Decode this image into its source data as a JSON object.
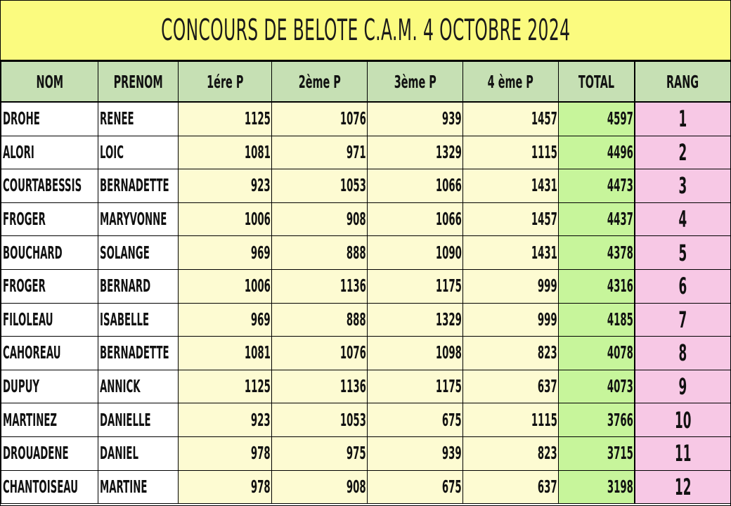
{
  "title": "CONCOURS DE BELOTE C.A.M. 4 OCTOBRE 2024",
  "headers": {
    "nom": "NOM",
    "prenom": "PRENOM",
    "p1": "1ére P",
    "p2": "2ème P",
    "p3": "3ème P",
    "p4": "4 ème P",
    "total": "TOTAL",
    "rang": "RANG"
  },
  "rows": [
    {
      "nom": "DROHE",
      "prenom": "RENEE",
      "p1": "1125",
      "p2": "1076",
      "p3": "939",
      "p4": "1457",
      "total": "4597",
      "rang": "1"
    },
    {
      "nom": "ALORI",
      "prenom": "LOIC",
      "p1": "1081",
      "p2": "971",
      "p3": "1329",
      "p4": "1115",
      "total": "4496",
      "rang": "2"
    },
    {
      "nom": "COURTABESSIS",
      "prenom": "BERNADETTE",
      "p1": "923",
      "p2": "1053",
      "p3": "1066",
      "p4": "1431",
      "total": "4473",
      "rang": "3"
    },
    {
      "nom": "FROGER",
      "prenom": "MARYVONNE",
      "p1": "1006",
      "p2": "908",
      "p3": "1066",
      "p4": "1457",
      "total": "4437",
      "rang": "4"
    },
    {
      "nom": "BOUCHARD",
      "prenom": "SOLANGE",
      "p1": "969",
      "p2": "888",
      "p3": "1090",
      "p4": "1431",
      "total": "4378",
      "rang": "5"
    },
    {
      "nom": "FROGER",
      "prenom": "BERNARD",
      "p1": "1006",
      "p2": "1136",
      "p3": "1175",
      "p4": "999",
      "total": "4316",
      "rang": "6"
    },
    {
      "nom": "FILOLEAU",
      "prenom": "ISABELLE",
      "p1": "969",
      "p2": "888",
      "p3": "1329",
      "p4": "999",
      "total": "4185",
      "rang": "7"
    },
    {
      "nom": "CAHOREAU",
      "prenom": "BERNADETTE",
      "p1": "1081",
      "p2": "1076",
      "p3": "1098",
      "p4": "823",
      "total": "4078",
      "rang": "8"
    },
    {
      "nom": "DUPUY",
      "prenom": "ANNICK",
      "p1": "1125",
      "p2": "1136",
      "p3": "1175",
      "p4": "637",
      "total": "4073",
      "rang": "9"
    },
    {
      "nom": "MARTINEZ",
      "prenom": "DANIELLE",
      "p1": "923",
      "p2": "1053",
      "p3": "675",
      "p4": "1115",
      "total": "3766",
      "rang": "10"
    },
    {
      "nom": "DROUADENE",
      "prenom": "DANIEL",
      "p1": "978",
      "p2": "975",
      "p3": "939",
      "p4": "823",
      "total": "3715",
      "rang": "11"
    },
    {
      "nom": "CHANTOISEAU",
      "prenom": "MARTINE",
      "p1": "978",
      "p2": "908",
      "p3": "675",
      "p4": "637",
      "total": "3198",
      "rang": "12"
    }
  ],
  "colors": {
    "title_bg": "#fbfb7f",
    "header_bg": "#c6e0b4",
    "score_bg": "#fdfbd2",
    "total_bg": "#c7f59b",
    "rang_bg": "#f7c8e5"
  }
}
